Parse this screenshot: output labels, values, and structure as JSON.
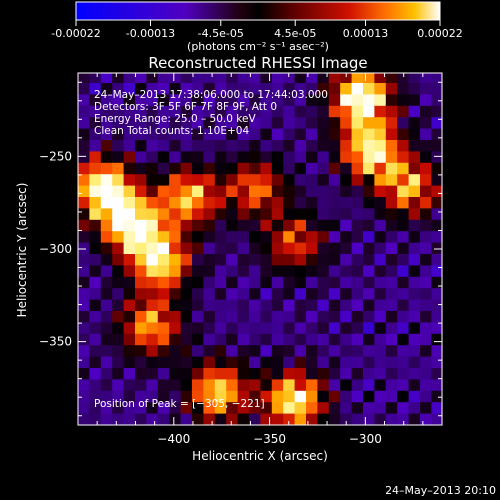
{
  "colorbar": {
    "tick_labels": [
      "-0.00022",
      "-0.00013",
      "-4.5e-05",
      "4.5e-05",
      "0.00013",
      "0.00022"
    ],
    "tick_values": [
      -0.00022,
      -0.00013,
      -4.5e-05,
      4.5e-05,
      0.00013,
      0.00022
    ],
    "range": [
      -0.00022,
      0.00022
    ],
    "unit_label": "(photons cm⁻² s⁻¹ asec⁻²)",
    "colors": [
      "#0000ff",
      "#5a00c8",
      "#2a0010",
      "#000000",
      "#5a0000",
      "#c80000",
      "#ff6a00",
      "#ffc000",
      "#ffffff"
    ]
  },
  "chart_data": {
    "type": "heatmap",
    "title": "Reconstructed RHESSI Image",
    "xlabel": "Heliocentric X (arcsec)",
    "ylabel": "Heliocentric Y (arcsec)",
    "xlim": [
      -450,
      -260
    ],
    "ylim": [
      -395,
      -205
    ],
    "x_ticks": [
      -400,
      -350,
      -300
    ],
    "x_tick_labels": [
      "−400",
      "−350",
      "−300"
    ],
    "y_ticks": [
      -350,
      -300,
      -250
    ],
    "y_tick_labels": [
      "−350",
      "−300",
      "−250"
    ],
    "annotations": [
      "24–May–2013 17:38:06.000 to 17:44:03.000",
      "Detectors: 3F 5F 6F 7F 8F 9F, Att 0",
      "Energy Range: 25.0 – 50.0 keV",
      "Clean     Total counts: 1.10E+04",
      "Position of Peak = [−305, −221]"
    ],
    "peak_position": [
      -305,
      -221
    ],
    "bright_sources": [
      {
        "x": -440,
        "y": -270,
        "level": 0.95
      },
      {
        "x": -425,
        "y": -290,
        "level": 0.9
      },
      {
        "x": -410,
        "y": -310,
        "level": 0.85
      },
      {
        "x": -395,
        "y": -275,
        "level": 0.75
      },
      {
        "x": -360,
        "y": -270,
        "level": 0.6
      },
      {
        "x": -340,
        "y": -300,
        "level": 0.55
      },
      {
        "x": -305,
        "y": -221,
        "level": 1.0
      },
      {
        "x": -300,
        "y": -250,
        "level": 0.85
      },
      {
        "x": -280,
        "y": -270,
        "level": 0.7
      },
      {
        "x": -380,
        "y": -380,
        "level": 0.8
      },
      {
        "x": -340,
        "y": -385,
        "level": 0.9
      },
      {
        "x": -415,
        "y": -345,
        "level": 0.7
      }
    ]
  },
  "footer": {
    "timestamp": "24–May–2013 20:10"
  }
}
